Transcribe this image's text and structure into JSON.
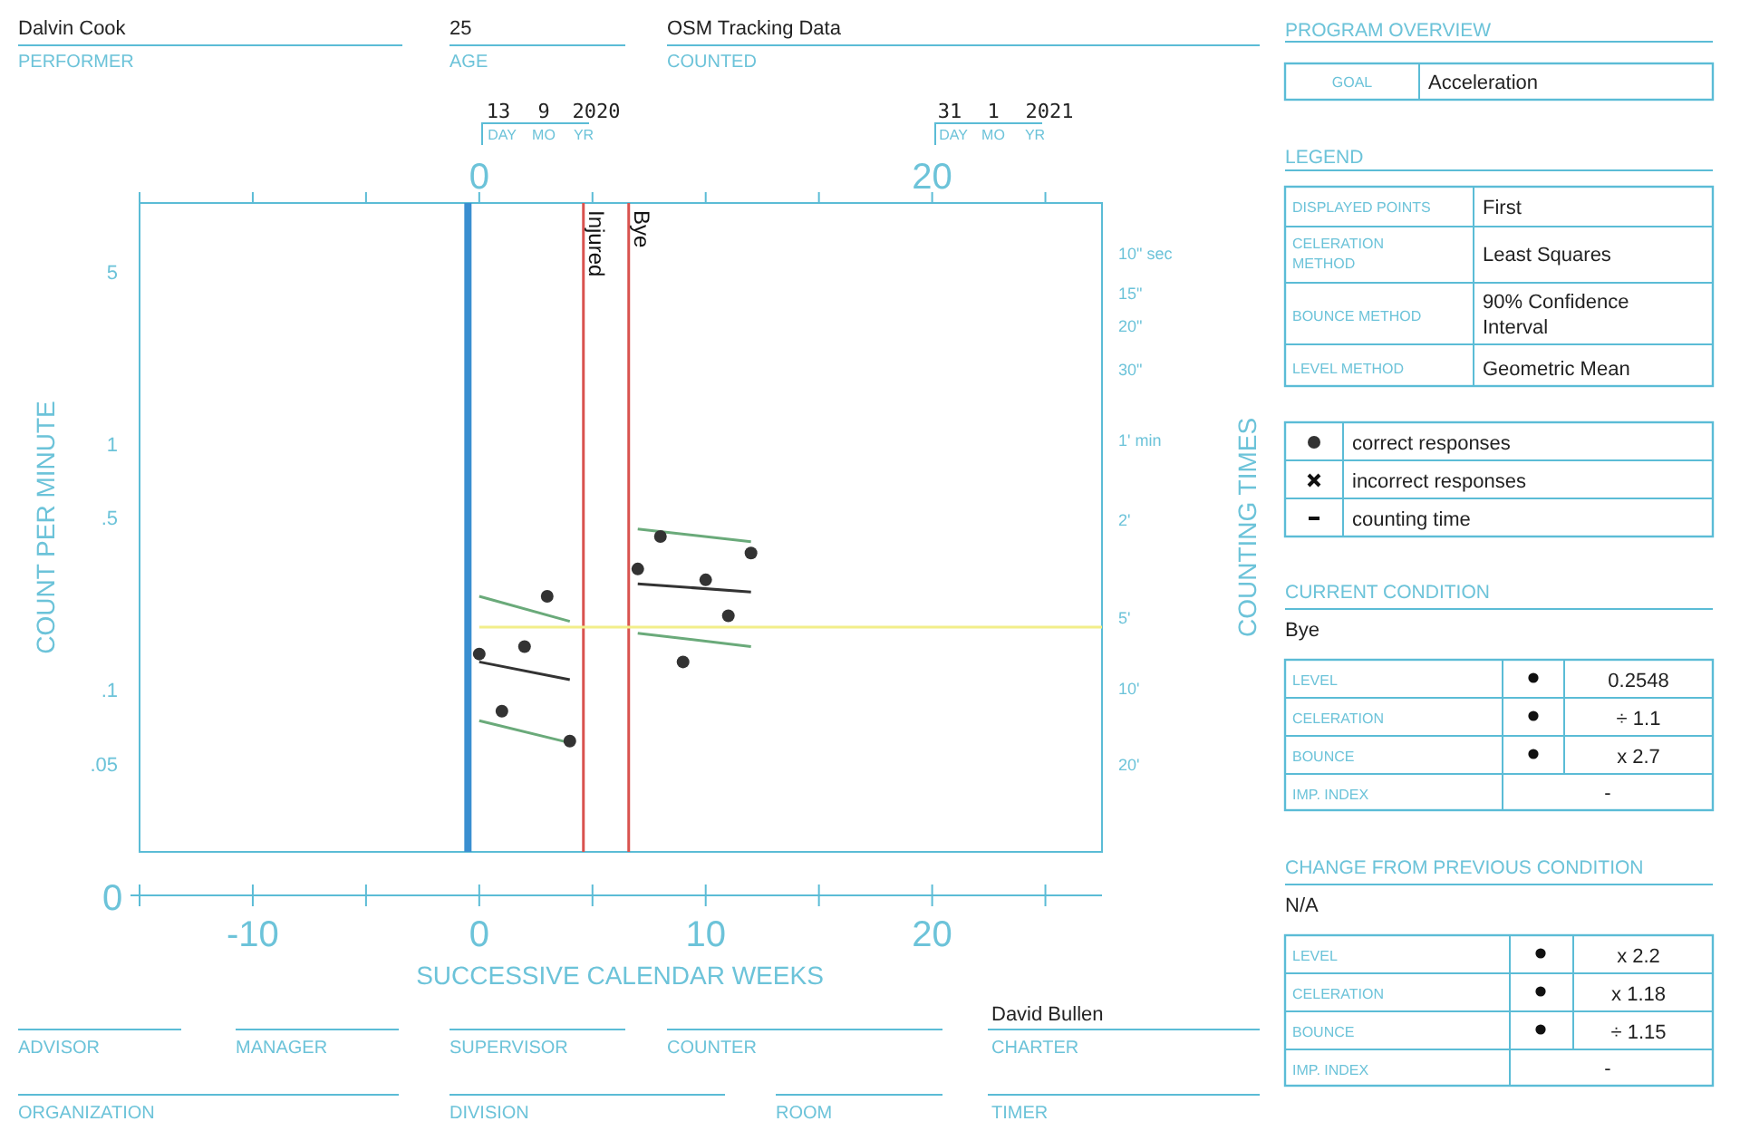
{
  "chart_data": {
    "type": "scatter",
    "xlabel": "SUCCESSIVE CALENDAR WEEKS",
    "ylabel": "COUNT PER MINUTE",
    "log": "y",
    "legend": "right",
    "xlim": [
      -15,
      27.5
    ],
    "xticks": [
      {
        "value": -15,
        "label": null
      },
      -10,
      {
        "value": -5,
        "label": null
      },
      0,
      {
        "value": 5,
        "label": null
      },
      10,
      {
        "value": 15,
        "label": null
      },
      20,
      {
        "value": 25,
        "label": null
      }
    ],
    "x2lim": [
      -15,
      27.5
    ],
    "x2ticks": [
      {
        "value": -15,
        "label": null
      },
      {
        "value": -10,
        "label": null
      },
      {
        "value": -5,
        "label": null
      },
      0,
      {
        "value": 5,
        "label": null
      },
      {
        "value": 10,
        "label": null
      },
      {
        "value": 15,
        "label": null
      },
      20,
      {
        "value": 25,
        "label": null
      }
    ],
    "ylim": [
      0.022,
      9.5
    ],
    "yticks": [
      5,
      1,
      {
        "value": 0.5,
        "label": ".5"
      },
      {
        "value": 0.1,
        "label": ".1"
      },
      {
        "value": 0.05,
        "label": ".05"
      }
    ],
    "ref_lines": [
      {
        "axis": "x",
        "value": -0.5,
        "color": "#3a8fd0"
      },
      {
        "axis": "x",
        "value": 4.6,
        "label": "Injured",
        "color": "#d9534f"
      },
      {
        "axis": "x",
        "value": 6.6,
        "label": "Bye",
        "color": "#d9534f"
      }
    ],
    "series": [
      {
        "name": "correct responses",
        "type": "scatter",
        "marker": "circle",
        "color": "#333333",
        "x": [
          0,
          1,
          2,
          3,
          4,
          7,
          8,
          9,
          10,
          11,
          12
        ],
        "values": [
          0.14,
          0.082,
          0.15,
          0.24,
          0.062,
          0.31,
          0.42,
          0.13,
          0.28,
          0.2,
          0.36
        ]
      },
      {
        "type": "line",
        "color": "#333333",
        "x": [
          0,
          4
        ],
        "values": [
          0.13,
          0.11
        ]
      },
      {
        "type": "line",
        "color": "#6aaa7a",
        "x": [
          0,
          4
        ],
        "values": [
          0.24,
          0.19
        ]
      },
      {
        "type": "line",
        "color": "#6aaa7a",
        "x": [
          0,
          4
        ],
        "values": [
          0.075,
          0.061
        ]
      },
      {
        "type": "line",
        "color": "#333333",
        "x": [
          7,
          12
        ],
        "values": [
          0.27,
          0.25
        ]
      },
      {
        "type": "line",
        "color": "#6aaa7a",
        "x": [
          7,
          12
        ],
        "values": [
          0.45,
          0.4
        ]
      },
      {
        "type": "line",
        "color": "#6aaa7a",
        "x": [
          7,
          12
        ],
        "values": [
          0.17,
          0.15
        ]
      },
      {
        "type": "line",
        "color": "#f2ee8a",
        "x": [
          0,
          27.5
        ],
        "values": [
          0.18,
          0.18
        ]
      }
    ],
    "annotations": [
      "Dalvin Cook",
      "PERFORMER",
      "25",
      "AGE",
      "OSM Tracking Data",
      "COUNTED",
      "13",
      "9",
      "2020",
      "DAY",
      "MO",
      "YR",
      "31",
      "1",
      "2021",
      "DAY",
      "MO",
      "YR",
      "0",
      "ADVISOR",
      "MANAGER",
      "SUPERVISOR",
      "COUNTER",
      "David Bullen",
      "CHARTER",
      "ORGANIZATION",
      "DIVISION",
      "ROOM",
      "TIMER",
      "PROGRAM OVERVIEW",
      "GOAL",
      "Acceleration",
      "LEGEND",
      "DISPLAYED POINTS",
      "First",
      "CELERATION METHOD",
      "Least Squares",
      "BOUNCE METHOD",
      "90% Confidence Interval",
      "LEVEL METHOD",
      "Geometric Mean",
      "incorrect responses",
      "counting time",
      "CURRENT CONDITION",
      "Bye",
      "LEVEL",
      "0.2548",
      "CELERATION",
      "÷ 1.1",
      "BOUNCE",
      "x 2.7",
      "IMP. INDEX",
      "-",
      "CHANGE FROM PREVIOUS CONDITION",
      "N/A",
      "LEVEL",
      "x 2.2",
      "CELERATION",
      "x 1.18",
      "BOUNCE",
      "÷ 1.15",
      "IMP. INDEX",
      "-",
      "COUNTING TIMES",
      "10\" sec",
      "15\"",
      "20\"",
      "30\"",
      "1' min",
      "2'",
      "5'",
      "10'",
      "20'"
    ]
  }
}
